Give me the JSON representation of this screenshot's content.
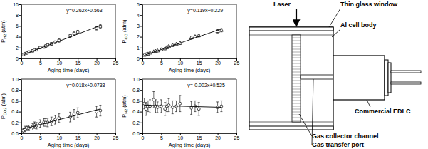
{
  "chart_data": [
    {
      "type": "scatter",
      "x_label": "Aging time (days)",
      "y_label": "PH2 (atm)",
      "xlim": [
        0,
        25
      ],
      "xticks": [
        0,
        5,
        10,
        15,
        20,
        25
      ],
      "ylim": [
        0,
        10
      ],
      "yticks": [
        0,
        2,
        4,
        6,
        8,
        10
      ],
      "annotations": [
        "y=0.262x+0.563"
      ],
      "series": [
        {
          "type": "scatter",
          "marker": "square",
          "color": "#000000",
          "x": [
            0.5,
            1,
            1.5,
            2,
            3,
            3.5,
            4,
            5,
            6,
            6.5,
            7,
            8,
            9,
            10,
            13,
            14,
            15,
            20,
            21
          ],
          "values": [
            0.7,
            0.9,
            1.0,
            1.2,
            1.4,
            1.6,
            1.6,
            2.0,
            2.1,
            2.3,
            2.5,
            2.7,
            3.0,
            3.3,
            4.2,
            4.6,
            4.9,
            5.6,
            5.9
          ],
          "errors": [
            0.1,
            0.1,
            0.15,
            0.15,
            0.2,
            0.2,
            0.2,
            0.2,
            0.2,
            0.2,
            0.25,
            0.25,
            0.25,
            0.3,
            0.3,
            0.3,
            0.3,
            0.35,
            0.35
          ]
        },
        {
          "type": "line",
          "line_style": "solid",
          "color": "#000000",
          "x": [
            0.5,
            21
          ],
          "values": [
            0.69,
            6.07
          ]
        }
      ]
    },
    {
      "type": "scatter",
      "x_label": "Aging time (days)",
      "y_label": "PCO (atm)",
      "xlim": [
        0,
        25
      ],
      "xticks": [
        0,
        5,
        10,
        15,
        20,
        25
      ],
      "ylim": [
        0,
        5
      ],
      "yticks": [
        0,
        1,
        2,
        3,
        4,
        5
      ],
      "annotations": [
        "y=0.119x+0.229"
      ],
      "series": [
        {
          "type": "scatter",
          "marker": "triangle",
          "color": "#000000",
          "x": [
            0.5,
            1,
            1.5,
            2,
            3,
            3.5,
            4,
            5,
            6,
            6.5,
            7,
            8,
            9,
            10,
            13,
            14,
            15,
            20,
            21
          ],
          "values": [
            0.3,
            0.35,
            0.4,
            0.5,
            0.6,
            0.65,
            0.7,
            0.8,
            0.9,
            1.0,
            1.1,
            1.2,
            1.3,
            1.4,
            1.9,
            2.0,
            2.1,
            2.5,
            2.6
          ],
          "errors": [
            0.05,
            0.05,
            0.05,
            0.05,
            0.08,
            0.08,
            0.08,
            0.08,
            0.1,
            0.1,
            0.1,
            0.1,
            0.1,
            0.12,
            0.12,
            0.12,
            0.12,
            0.15,
            0.15
          ]
        },
        {
          "type": "line",
          "line_style": "solid",
          "color": "#000000",
          "x": [
            0.5,
            21
          ],
          "values": [
            0.29,
            2.73
          ]
        }
      ]
    },
    {
      "type": "scatter",
      "x_label": "Aging time (days)",
      "y_label": "PCO2 (atm)",
      "xlim": [
        0,
        25
      ],
      "xticks": [
        0,
        5,
        10,
        15,
        20,
        25
      ],
      "ylim": [
        0,
        1.0
      ],
      "yticks": [
        {
          "value": 0,
          "label": "0.0"
        },
        0.2,
        0.4,
        0.6,
        0.8,
        {
          "value": 1.0,
          "label": "1.0"
        }
      ],
      "annotations": [
        "y=0.018x+0.0733"
      ],
      "series": [
        {
          "type": "scatter",
          "marker": "circle",
          "color": "#000000",
          "x": [
            0.5,
            1,
            1.5,
            2,
            3,
            3.5,
            4,
            5,
            6,
            6.5,
            7,
            8,
            9,
            10,
            13,
            14,
            15,
            20,
            21
          ],
          "values": [
            0.05,
            0.08,
            0.1,
            0.1,
            0.12,
            0.15,
            0.14,
            0.18,
            0.2,
            0.2,
            0.2,
            0.22,
            0.25,
            0.28,
            0.3,
            0.35,
            0.38,
            0.4,
            0.42
          ],
          "errors": [
            0.04,
            0.05,
            0.05,
            0.05,
            0.06,
            0.06,
            0.06,
            0.07,
            0.07,
            0.07,
            0.08,
            0.08,
            0.08,
            0.08,
            0.09,
            0.09,
            0.09,
            0.1,
            0.1
          ]
        },
        {
          "type": "line",
          "line_style": "solid",
          "color": "#000000",
          "x": [
            0.5,
            21
          ],
          "values": [
            0.08,
            0.45
          ]
        }
      ]
    },
    {
      "type": "scatter",
      "x_label": "Aging time (days)",
      "y_label": "PN2 (atm)",
      "xlim": [
        0,
        25
      ],
      "xticks": [
        0,
        5,
        10,
        15,
        20,
        25
      ],
      "ylim": [
        0,
        1.0
      ],
      "yticks": [
        {
          "value": 0,
          "label": "0.0"
        },
        0.2,
        0.4,
        0.6,
        0.8,
        {
          "value": 1.0,
          "label": "1.0"
        }
      ],
      "annotations": [
        "y=-0.002x+0.525"
      ],
      "series": [
        {
          "type": "scatter",
          "marker": "circle",
          "color": "#000000",
          "x": [
            0.5,
            1,
            1.5,
            2,
            3,
            3.5,
            4,
            5,
            6,
            6.5,
            7,
            8,
            9,
            10,
            13,
            14,
            15,
            20,
            21
          ],
          "values": [
            0.55,
            0.45,
            0.5,
            0.5,
            0.62,
            0.5,
            0.48,
            0.5,
            0.45,
            0.5,
            0.52,
            0.48,
            0.5,
            0.55,
            0.47,
            0.5,
            0.45,
            0.48,
            0.5
          ],
          "errors": [
            0.1,
            0.12,
            0.1,
            0.12,
            0.15,
            0.12,
            0.1,
            0.12,
            0.12,
            0.1,
            0.12,
            0.12,
            0.1,
            0.15,
            0.12,
            0.1,
            0.12,
            0.1,
            0.1
          ]
        },
        {
          "type": "line",
          "line_style": "solid",
          "color": "#000000",
          "x": [
            0.5,
            21
          ],
          "values": [
            0.52,
            0.48
          ]
        }
      ]
    }
  ],
  "diagram": {
    "labels": {
      "laser": "Laser",
      "window": "Thin glass window",
      "body": "Al cell body",
      "edlc": "Commercial EDLC",
      "collector": "Gas collector channel",
      "port": "Gas transfer port"
    }
  }
}
